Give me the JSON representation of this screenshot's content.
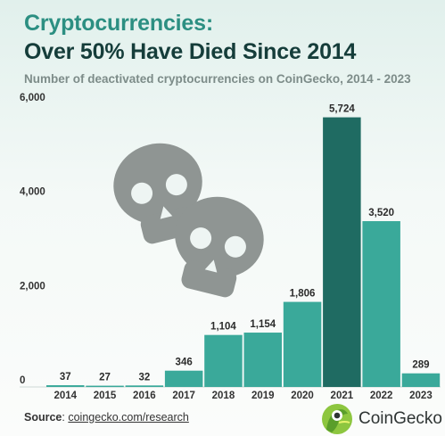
{
  "header": {
    "title_line1": "Cryptocurrencies:",
    "title_line2": "Over 50% Have Died Since 2014",
    "subtitle": "Number of deactivated cryptocurrencies on CoinGecko, 2014 - 2023"
  },
  "footer": {
    "source_label": "Source",
    "source_sep": ":",
    "source_link": "coingecko.com/research",
    "brand": "CoinGecko"
  },
  "icons": [
    "skull-icon",
    "skull-icon",
    "coingecko-logo-icon"
  ],
  "colors": {
    "bar": "#3aa99a",
    "bar_highlight": "#1f6b62",
    "title_accent": "#2c8f82",
    "title_dark": "#153d3a",
    "skull": "#8f9593"
  },
  "chart_data": {
    "type": "bar",
    "title": "Cryptocurrencies: Over 50% Have Died Since 2014",
    "subtitle": "Number of deactivated cryptocurrencies on CoinGecko, 2014 - 2023",
    "xlabel": "",
    "ylabel": "",
    "categories": [
      "2014",
      "2015",
      "2016",
      "2017",
      "2018",
      "2019",
      "2020",
      "2021",
      "2022",
      "2023"
    ],
    "values": [
      37,
      27,
      32,
      346,
      1104,
      1154,
      1806,
      5724,
      3520,
      289
    ],
    "value_labels": [
      "37",
      "27",
      "32",
      "346",
      "1,104",
      "1,154",
      "1,806",
      "5,724",
      "3,520",
      "289"
    ],
    "highlight": "2021",
    "ylim": [
      0,
      6000
    ],
    "yticks": [
      0,
      2000,
      4000,
      6000
    ],
    "ytick_labels": [
      "0",
      "2,000",
      "4,000",
      "6,000"
    ],
    "grid": false,
    "legend": "none"
  }
}
